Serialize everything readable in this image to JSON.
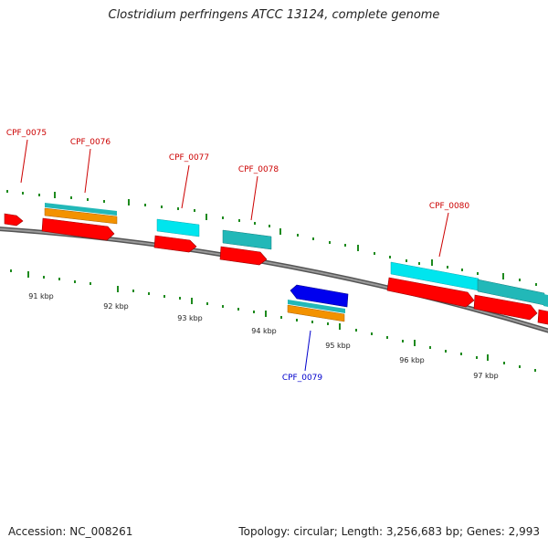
{
  "title": "Clostridium perfringens ATCC 13124, complete genome",
  "footer": {
    "accession": "Accession: NC_008261",
    "summary": "Topology: circular; Length: 3,256,683 bp; Genes: 2,993"
  },
  "colors": {
    "gene_plus": "#ff0000",
    "gene_minus": "#0000ee",
    "label_plus": "#cc0000",
    "label_minus": "#0000cc",
    "cds_cyan": "#00e5ee",
    "cds_teal": "#22b8b8",
    "rna_orange": "#f39200",
    "backbone": "#808080",
    "tick": "#1e8a1e",
    "text": "#222222"
  },
  "gene_labels": [
    {
      "id": "CPF_0075",
      "strand": "+"
    },
    {
      "id": "CPF_0076",
      "strand": "+"
    },
    {
      "id": "CPF_0077",
      "strand": "+"
    },
    {
      "id": "CPF_0078",
      "strand": "+"
    },
    {
      "id": "CPF_0079",
      "strand": "-"
    },
    {
      "id": "CPF_0080",
      "strand": "+"
    }
  ],
  "kbp_labels": [
    "91 kbp",
    "92 kbp",
    "93 kbp",
    "94 kbp",
    "95 kbp",
    "96 kbp",
    "97 kbp"
  ]
}
